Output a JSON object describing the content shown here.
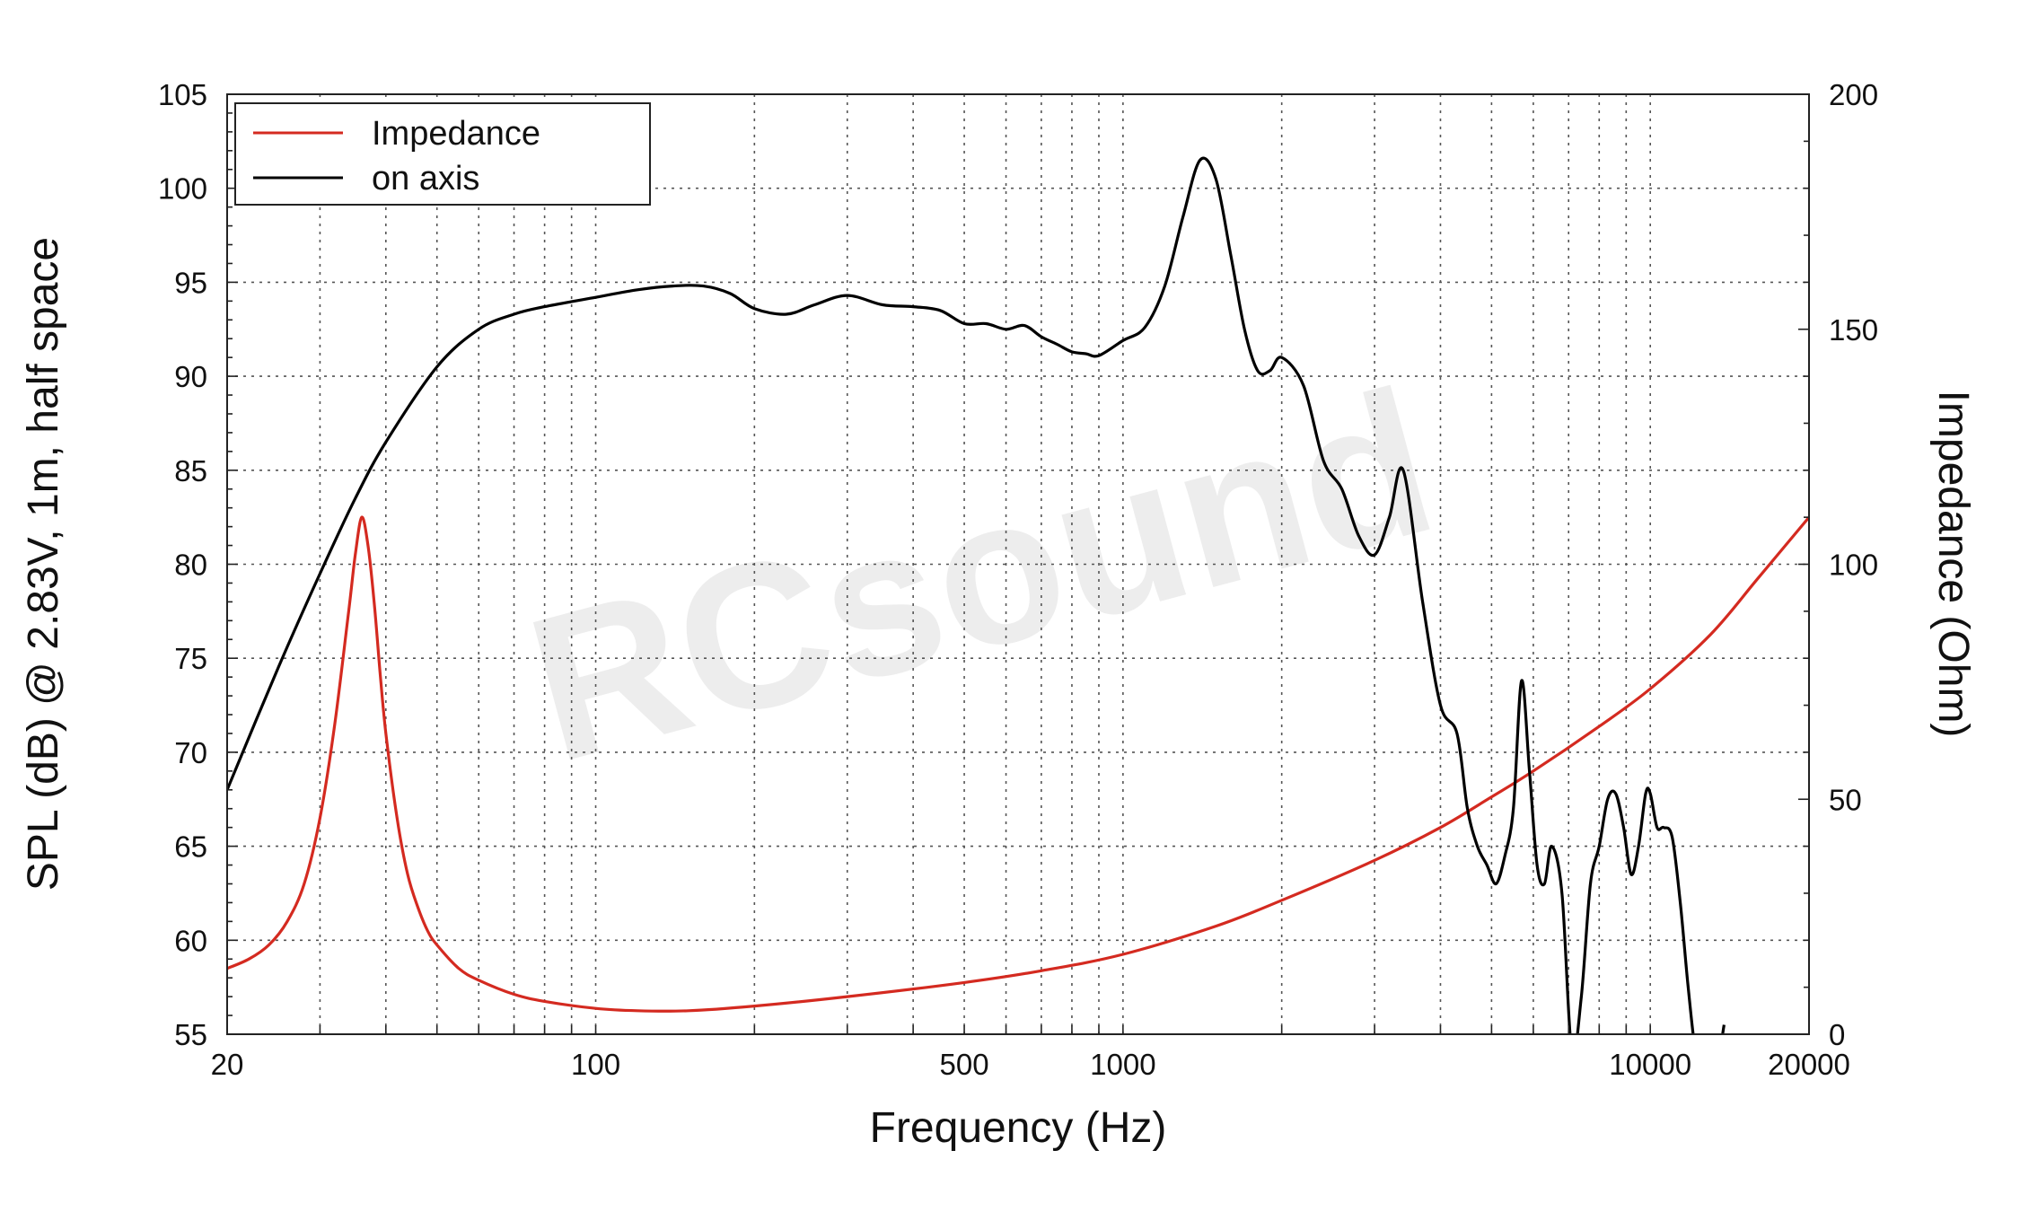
{
  "chart_data": {
    "type": "line",
    "title": "",
    "xlabel": "Frequency (Hz)",
    "ylabel": "SPL (dB) @ 2.83V, 1m, half space",
    "y2label": "Impedance (Ohm)",
    "xscale": "log",
    "xlim": [
      20,
      20000
    ],
    "ylim": [
      55,
      105
    ],
    "y2lim": [
      0,
      200
    ],
    "grid": true,
    "legend_position": "top-left",
    "watermark": "RCsound",
    "x_tick_labels": [
      "20",
      "100",
      "500",
      "1000",
      "10000",
      "20000"
    ],
    "x_tick_values": [
      20,
      100,
      500,
      1000,
      10000,
      20000
    ],
    "y_ticks": [
      "55",
      "60",
      "65",
      "70",
      "75",
      "80",
      "85",
      "90",
      "95",
      "100",
      "105"
    ],
    "y2_ticks": [
      "0",
      "50",
      "100",
      "150",
      "200"
    ],
    "colors": {
      "impedance": "#d42a20",
      "on_axis": "#000000"
    },
    "series": [
      {
        "name": "Impedance",
        "axis": "right",
        "x": [
          20,
          22,
          24,
          26,
          28,
          30,
          32,
          34,
          35,
          36,
          37,
          38,
          39,
          40,
          42,
          44,
          46,
          48,
          50,
          55,
          60,
          70,
          80,
          100,
          120,
          150,
          200,
          300,
          500,
          700,
          1000,
          1500,
          2000,
          3000,
          4000,
          5000,
          6000,
          8000,
          10000,
          13000,
          16000,
          20000
        ],
        "y": [
          14,
          16,
          19,
          24,
          32,
          46,
          66,
          90,
          102,
          110,
          104,
          92,
          77,
          64,
          46,
          34,
          27,
          22,
          19,
          14,
          11.5,
          8.5,
          7,
          5.5,
          5,
          5,
          6,
          8,
          11,
          13.5,
          17,
          23,
          28.5,
          37,
          44,
          50.5,
          56,
          65.5,
          73.5,
          85,
          97,
          110
        ]
      },
      {
        "name": "on axis",
        "axis": "left",
        "x": [
          20,
          25,
          30,
          35,
          40,
          50,
          60,
          70,
          80,
          100,
          120,
          140,
          160,
          180,
          200,
          230,
          260,
          300,
          350,
          400,
          450,
          500,
          550,
          600,
          650,
          700,
          750,
          800,
          850,
          900,
          1000,
          1100,
          1200,
          1300,
          1400,
          1500,
          1600,
          1700,
          1800,
          1900,
          2000,
          2200,
          2400,
          2600,
          2800,
          3000,
          3200,
          3400,
          3700,
          4000,
          4300,
          4500,
          4700,
          4900,
          5100,
          5300,
          5500,
          5700,
          5900,
          6100,
          6300,
          6500,
          6800,
          7100,
          7400,
          7700,
          8000,
          8300,
          8600,
          8900,
          9200,
          9500,
          9800,
          10000,
          10300,
          10600,
          11000,
          11400,
          11800,
          12200,
          12600,
          13000,
          13500,
          13800
        ],
        "y": [
          68,
          74.5,
          79.5,
          83.5,
          86.5,
          90.5,
          92.5,
          93.3,
          93.7,
          94.2,
          94.6,
          94.8,
          94.8,
          94.4,
          93.6,
          93.3,
          93.8,
          94.3,
          93.8,
          93.7,
          93.5,
          92.8,
          92.8,
          92.5,
          92.7,
          92.1,
          91.7,
          91.3,
          91.2,
          91.1,
          91.9,
          92.6,
          94.8,
          98.5,
          101.5,
          100.5,
          96.5,
          92.5,
          90.3,
          90.3,
          91,
          89.5,
          85.5,
          84,
          81.5,
          80.5,
          82.5,
          85,
          78,
          72.5,
          71,
          67,
          65,
          64,
          63,
          64.5,
          67,
          73.8,
          69,
          64,
          63,
          65,
          62.5,
          54,
          57,
          63,
          65,
          67.5,
          67.8,
          66,
          63.5,
          65,
          67.8,
          67.8,
          66,
          66,
          65.5,
          62,
          57.5,
          54,
          53.5,
          53,
          54,
          55.5
        ]
      }
    ]
  }
}
